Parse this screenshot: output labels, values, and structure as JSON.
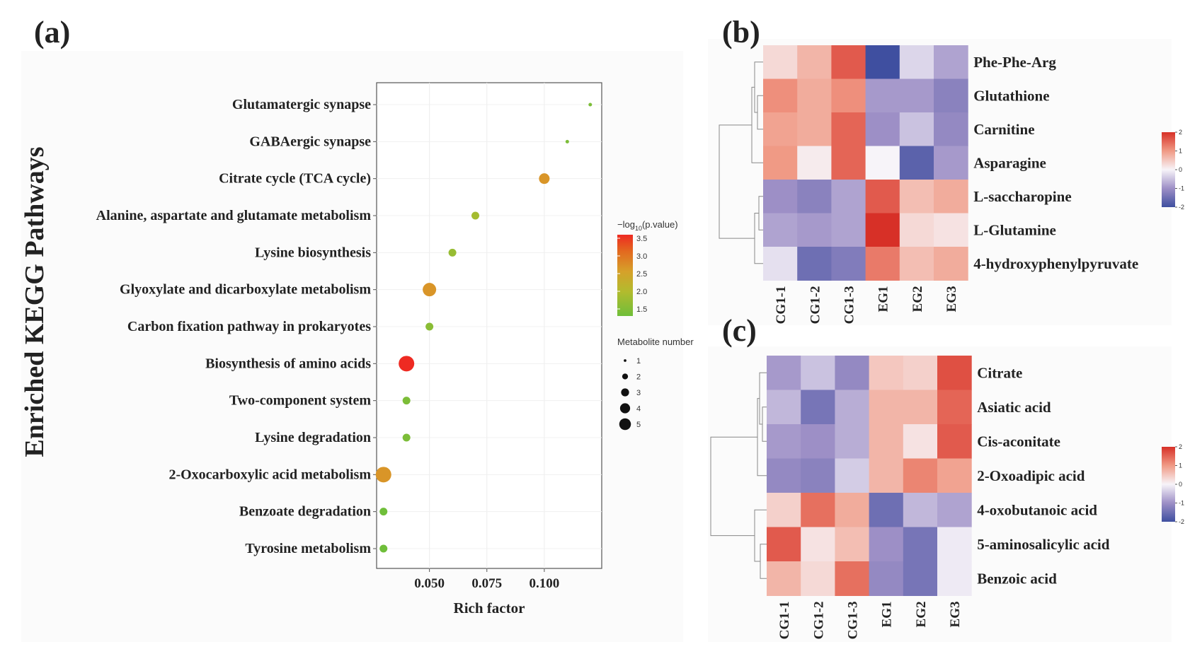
{
  "chart_data": [
    {
      "panel": "(a)",
      "type": "scatter",
      "xlabel": "Rich factor",
      "ylabel": "Enriched KEGG Pathways",
      "xlim": [
        0.027,
        0.125
      ],
      "xticks": [
        0.05,
        0.075,
        0.1
      ],
      "xtick_labels": [
        "0.050",
        "0.075",
        "0.100"
      ],
      "grid": true,
      "points": [
        {
          "pathway": "Glutamatergic synapse",
          "rich_factor": 0.12,
          "neg_log10_p": 1.6,
          "metabolite_number": 1
        },
        {
          "pathway": "GABAergic synapse",
          "rich_factor": 0.11,
          "neg_log10_p": 1.6,
          "metabolite_number": 1
        },
        {
          "pathway": "Citrate cycle (TCA cycle)",
          "rich_factor": 0.1,
          "neg_log10_p": 2.6,
          "metabolite_number": 3
        },
        {
          "pathway": "Alanine, aspartate and glutamate metabolism",
          "rich_factor": 0.07,
          "neg_log10_p": 1.9,
          "metabolite_number": 2
        },
        {
          "pathway": "Lysine biosynthesis",
          "rich_factor": 0.06,
          "neg_log10_p": 1.8,
          "metabolite_number": 2
        },
        {
          "pathway": "Glyoxylate and dicarboxylate metabolism",
          "rich_factor": 0.05,
          "neg_log10_p": 2.6,
          "metabolite_number": 4
        },
        {
          "pathway": "Carbon fixation pathway in prokaryotes",
          "rich_factor": 0.05,
          "neg_log10_p": 1.7,
          "metabolite_number": 2
        },
        {
          "pathway": "Biosynthesis of amino acids",
          "rich_factor": 0.04,
          "neg_log10_p": 3.6,
          "metabolite_number": 5
        },
        {
          "pathway": "Two-component system",
          "rich_factor": 0.04,
          "neg_log10_p": 1.6,
          "metabolite_number": 2
        },
        {
          "pathway": "Lysine degradation",
          "rich_factor": 0.04,
          "neg_log10_p": 1.6,
          "metabolite_number": 2
        },
        {
          "pathway": "2-Oxocarboxylic acid metabolism",
          "rich_factor": 0.03,
          "neg_log10_p": 2.6,
          "metabolite_number": 5
        },
        {
          "pathway": "Benzoate degradation",
          "rich_factor": 0.03,
          "neg_log10_p": 1.5,
          "metabolite_number": 2
        },
        {
          "pathway": "Tyrosine metabolism",
          "rich_factor": 0.03,
          "neg_log10_p": 1.5,
          "metabolite_number": 2
        }
      ],
      "color_legend": {
        "title": "−log",
        "title_sub": "10",
        "title_rest": "(p.value)",
        "ticks": [
          1.5,
          2.0,
          2.5,
          3.0,
          3.5
        ],
        "tick_labels": [
          "1.5",
          "2.0",
          "2.5",
          "3.0",
          "3.5"
        ],
        "colors": [
          "#6fbe3a",
          "#b2bb2e",
          "#d6a02a",
          "#e3681f",
          "#ee2a22"
        ]
      },
      "size_legend": {
        "title": "Metabolite number",
        "values": [
          1,
          2,
          3,
          4,
          5
        ],
        "labels": [
          "1",
          "2",
          "3",
          "4",
          "5"
        ]
      }
    },
    {
      "panel": "(b)",
      "type": "heatmap",
      "columns": [
        "CG1-1",
        "CG1-2",
        "CG1-3",
        "EG1",
        "EG2",
        "EG3"
      ],
      "rows": [
        "Phe-Phe-Arg",
        "Glutathione",
        "Carnitine",
        "Asparagine",
        "L-saccharopine",
        "L-Glutamine",
        "4-hydroxyphenylpyruvate"
      ],
      "values": [
        [
          0.3,
          0.7,
          1.6,
          -2.0,
          -0.3,
          -0.8
        ],
        [
          1.1,
          0.8,
          1.1,
          -0.9,
          -0.9,
          -1.2
        ],
        [
          0.9,
          0.8,
          1.5,
          -1.0,
          -0.5,
          -1.1
        ],
        [
          1.0,
          0.1,
          1.5,
          0.0,
          -1.7,
          -0.9
        ],
        [
          -1.0,
          -1.2,
          -0.8,
          1.6,
          0.6,
          0.8
        ],
        [
          -0.8,
          -0.9,
          -0.8,
          2.0,
          0.3,
          0.2
        ],
        [
          -0.2,
          -1.5,
          -1.3,
          1.3,
          0.6,
          0.8
        ]
      ],
      "colorbar_ticks": [
        2,
        1,
        0,
        -1,
        -2
      ],
      "colorbar_labels": [
        "2",
        "1",
        "0",
        "-1",
        "-2"
      ]
    },
    {
      "panel": "(c)",
      "type": "heatmap",
      "columns": [
        "CG1-1",
        "CG1-2",
        "CG1-3",
        "EG1",
        "EG2",
        "EG3"
      ],
      "rows": [
        "Citrate",
        "Asiatic acid",
        "Cis-aconitate",
        "2-Oxoadipic acid",
        "4-oxobutanoic acid",
        "5-aminosalicylic acid",
        "Benzoic acid"
      ],
      "values": [
        [
          -0.9,
          -0.5,
          -1.1,
          0.5,
          0.4,
          1.7
        ],
        [
          -0.6,
          -1.4,
          -0.7,
          0.7,
          0.7,
          1.5
        ],
        [
          -0.9,
          -1.0,
          -0.7,
          0.7,
          0.2,
          1.6
        ],
        [
          -1.1,
          -1.2,
          -0.4,
          0.7,
          1.2,
          0.9
        ],
        [
          0.4,
          1.4,
          0.8,
          -1.5,
          -0.6,
          -0.8
        ],
        [
          1.6,
          0.2,
          0.6,
          -1.0,
          -1.4,
          -0.1
        ],
        [
          0.7,
          0.3,
          1.4,
          -1.1,
          -1.4,
          -0.1
        ]
      ],
      "colorbar_ticks": [
        2,
        1,
        0,
        -1,
        -2
      ],
      "colorbar_labels": [
        "2",
        "1",
        "0",
        "-1",
        "-2"
      ]
    }
  ]
}
